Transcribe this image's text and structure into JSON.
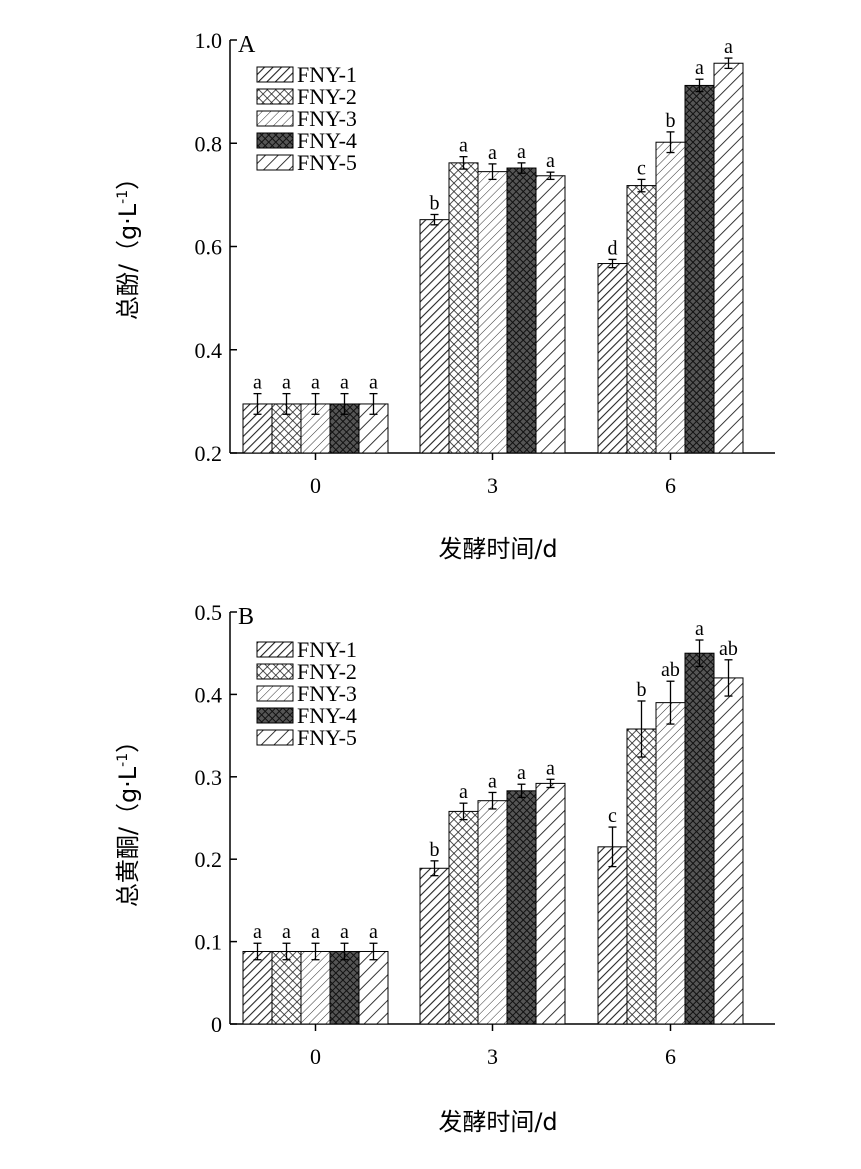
{
  "figure": {
    "panels": [
      {
        "tag": "A",
        "ylabel": "总酚/（g·L",
        "ylabel_sup": "-1",
        "ylabel_end": "）",
        "xlabel": "发酵时间/d"
      },
      {
        "tag": "B",
        "ylabel": "总黄酮/（g·L",
        "ylabel_sup": "-1",
        "ylabel_end": "）",
        "xlabel": "发酵时间/d"
      }
    ]
  },
  "colors": {
    "axis": "#000000",
    "fill": "#ffffff",
    "ink": "#222222"
  },
  "chart_data": [
    {
      "type": "bar",
      "title": "",
      "panel_label": "A",
      "xlabel": "发酵时间/d",
      "ylabel": "总酚/（g·L-1）",
      "categories": [
        "0",
        "3",
        "6"
      ],
      "ylim": [
        0.2,
        1.0
      ],
      "yticks": [
        "0.2",
        "0.4",
        "0.6",
        "0.8",
        "1.0"
      ],
      "legend_position": "top-left",
      "series": [
        {
          "name": "FNY-1",
          "pattern": "diag-narrow",
          "values": [
            0.295,
            0.652,
            0.567
          ],
          "errors": [
            0.02,
            0.01,
            0.008
          ],
          "letters": [
            "a",
            "b",
            "d"
          ]
        },
        {
          "name": "FNY-2",
          "pattern": "crosshatch",
          "values": [
            0.295,
            0.762,
            0.718
          ],
          "errors": [
            0.02,
            0.012,
            0.012
          ],
          "letters": [
            "a",
            "a",
            "c"
          ]
        },
        {
          "name": "FNY-3",
          "pattern": "diag-light",
          "values": [
            0.295,
            0.745,
            0.802
          ],
          "errors": [
            0.02,
            0.015,
            0.02
          ],
          "letters": [
            "a",
            "a",
            "b"
          ]
        },
        {
          "name": "FNY-4",
          "pattern": "dark-crosshatch",
          "values": [
            0.295,
            0.752,
            0.912
          ],
          "errors": [
            0.02,
            0.01,
            0.012
          ],
          "letters": [
            "a",
            "a",
            "a"
          ]
        },
        {
          "name": "FNY-5",
          "pattern": "diag-wide",
          "values": [
            0.295,
            0.737,
            0.955
          ],
          "errors": [
            0.02,
            0.007,
            0.01
          ],
          "letters": [
            "a",
            "a",
            "a"
          ]
        }
      ]
    },
    {
      "type": "bar",
      "title": "",
      "panel_label": "B",
      "xlabel": "发酵时间/d",
      "ylabel": "总黄酮/（g·L-1）",
      "categories": [
        "0",
        "3",
        "6"
      ],
      "ylim": [
        0,
        0.5
      ],
      "yticks": [
        "0",
        "0.1",
        "0.2",
        "0.3",
        "0.4",
        "0.5"
      ],
      "legend_position": "top-left",
      "series": [
        {
          "name": "FNY-1",
          "pattern": "diag-narrow",
          "values": [
            0.088,
            0.189,
            0.215
          ],
          "errors": [
            0.01,
            0.009,
            0.024
          ],
          "letters": [
            "a",
            "b",
            "c"
          ]
        },
        {
          "name": "FNY-2",
          "pattern": "crosshatch",
          "values": [
            0.088,
            0.258,
            0.358
          ],
          "errors": [
            0.01,
            0.01,
            0.034
          ],
          "letters": [
            "a",
            "a",
            "b"
          ]
        },
        {
          "name": "FNY-3",
          "pattern": "diag-light",
          "values": [
            0.088,
            0.271,
            0.39
          ],
          "errors": [
            0.01,
            0.01,
            0.026
          ],
          "letters": [
            "a",
            "a",
            "ab"
          ]
        },
        {
          "name": "FNY-4",
          "pattern": "dark-crosshatch",
          "values": [
            0.088,
            0.283,
            0.45
          ],
          "errors": [
            0.01,
            0.008,
            0.016
          ],
          "letters": [
            "a",
            "a",
            "a"
          ]
        },
        {
          "name": "FNY-5",
          "pattern": "diag-wide",
          "values": [
            0.088,
            0.292,
            0.42
          ],
          "errors": [
            0.01,
            0.005,
            0.022
          ],
          "letters": [
            "a",
            "a",
            "ab"
          ]
        }
      ]
    }
  ]
}
